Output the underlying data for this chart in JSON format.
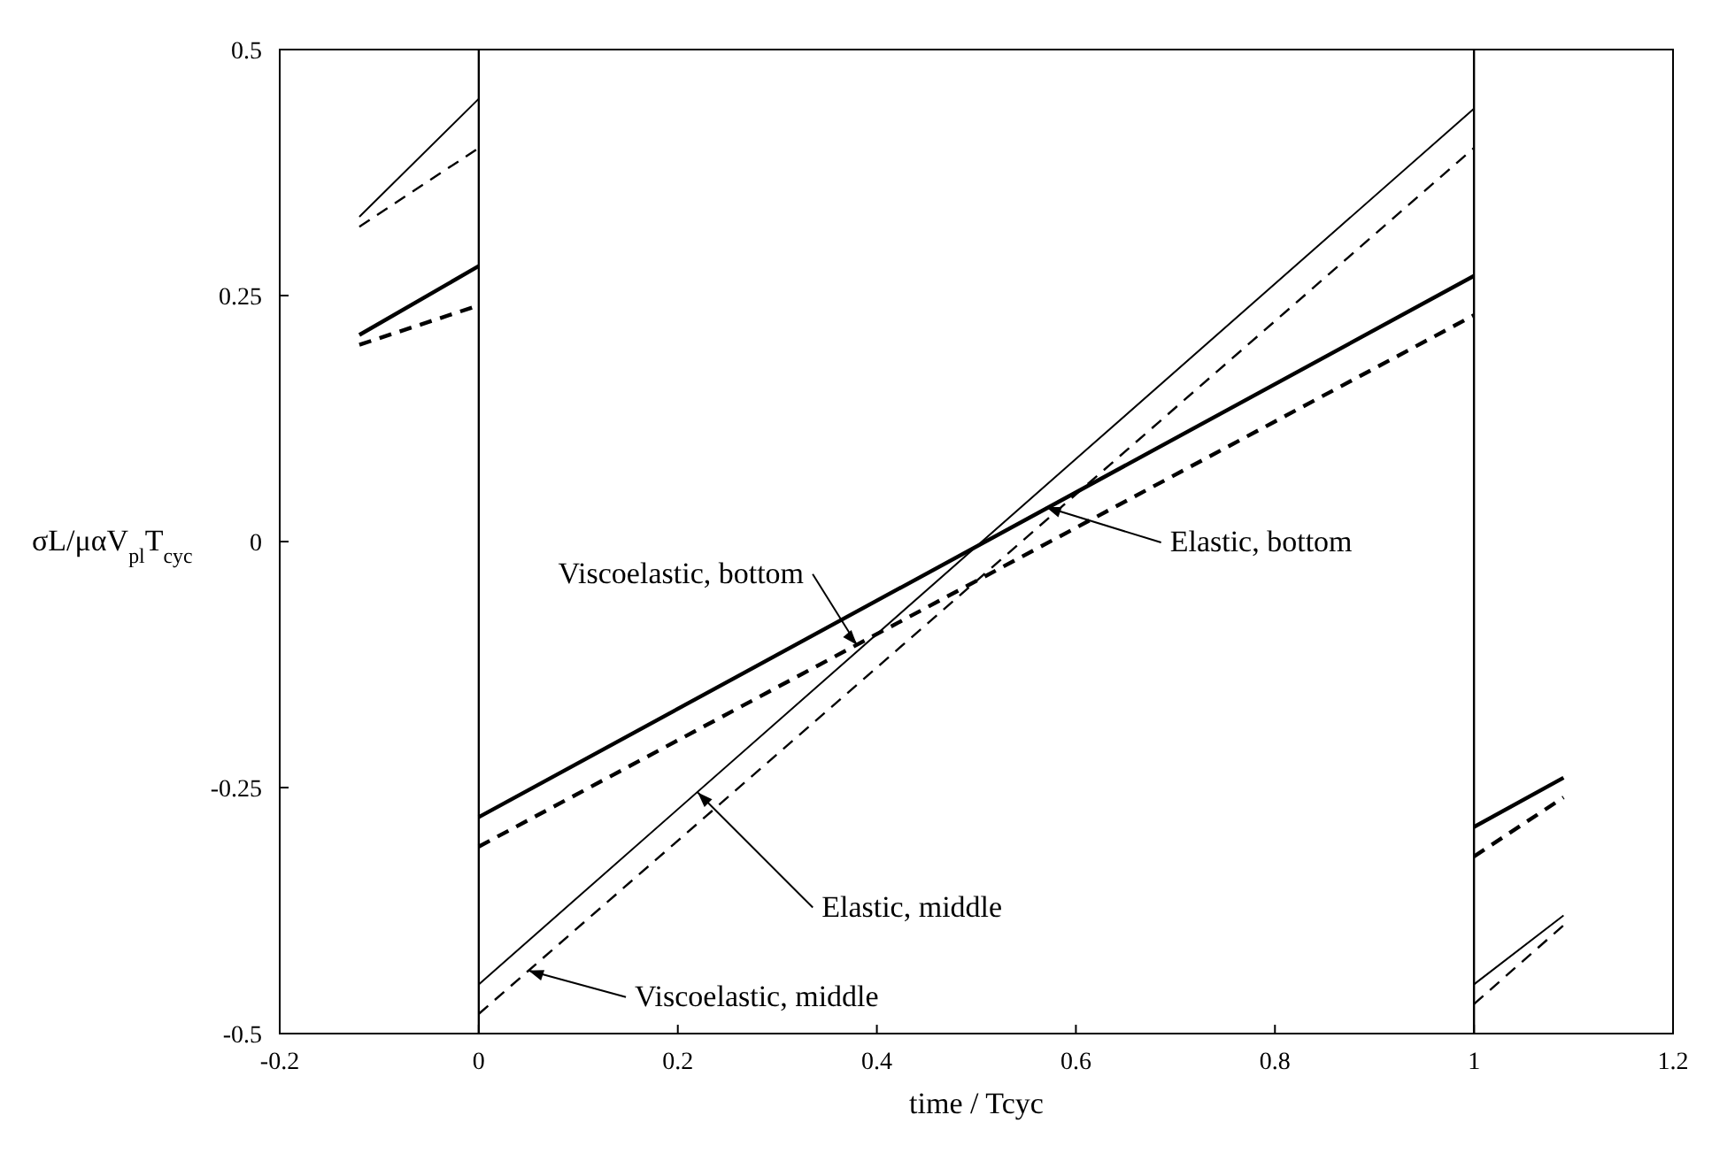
{
  "chart_data": {
    "type": "line",
    "xlabel": "time / Tcyc",
    "ylabel": "σL/μαV$_{pl}$T$_{cyc}$",
    "xlim": [
      -0.2,
      1.2
    ],
    "xticks": [
      -0.2,
      0,
      0.2,
      0.4,
      0.6,
      0.8,
      1,
      1.2
    ],
    "ylim": [
      -0.5,
      0.5
    ],
    "yticks": [
      -0.5,
      -0.25,
      0,
      0.25,
      0.5
    ],
    "grid": false,
    "marker": "none",
    "series": [
      {
        "color": "#000000",
        "line_style": "solid",
        "x": [
          -0.12,
          0,
          null,
          0,
          1,
          null,
          1,
          1.09
        ],
        "values": [
          0.33,
          0.45,
          null,
          -0.45,
          0.44,
          null,
          -0.45,
          -0.38
        ]
      },
      {
        "color": "#000000",
        "line_style": "dashed",
        "x": [
          -0.12,
          0,
          null,
          0,
          1,
          null,
          1,
          1.09
        ],
        "values": [
          0.32,
          0.4,
          null,
          -0.48,
          0.4,
          null,
          -0.47,
          -0.39
        ]
      },
      {
        "color": "#000000",
        "line_style": "solid",
        "x": [
          -0.12,
          0,
          null,
          0,
          1,
          null,
          1,
          1.09
        ],
        "values": [
          0.21,
          0.28,
          null,
          -0.28,
          0.27,
          null,
          -0.29,
          -0.24
        ]
      },
      {
        "color": "#000000",
        "line_style": "dashed",
        "x": [
          -0.12,
          0,
          null,
          0,
          1,
          null,
          1,
          1.09
        ],
        "values": [
          0.2,
          0.24,
          null,
          -0.31,
          0.23,
          null,
          -0.32,
          -0.26
        ]
      }
    ],
    "ref_lines": [
      {
        "axis": "x",
        "value": 0
      },
      {
        "axis": "x",
        "value": 1
      }
    ],
    "annotations": [
      {
        "text": "Viscoelastic, bottom",
        "x": 0.38,
        "y": -0.105
      },
      {
        "text": "Elastic, bottom",
        "x": 0.57,
        "y": 0.035
      },
      {
        "text": "Elastic, middle",
        "x": 0.22,
        "y": -0.255
      },
      {
        "text": "Viscoelastic, middle",
        "x": 0.05,
        "y": -0.436
      }
    ]
  }
}
